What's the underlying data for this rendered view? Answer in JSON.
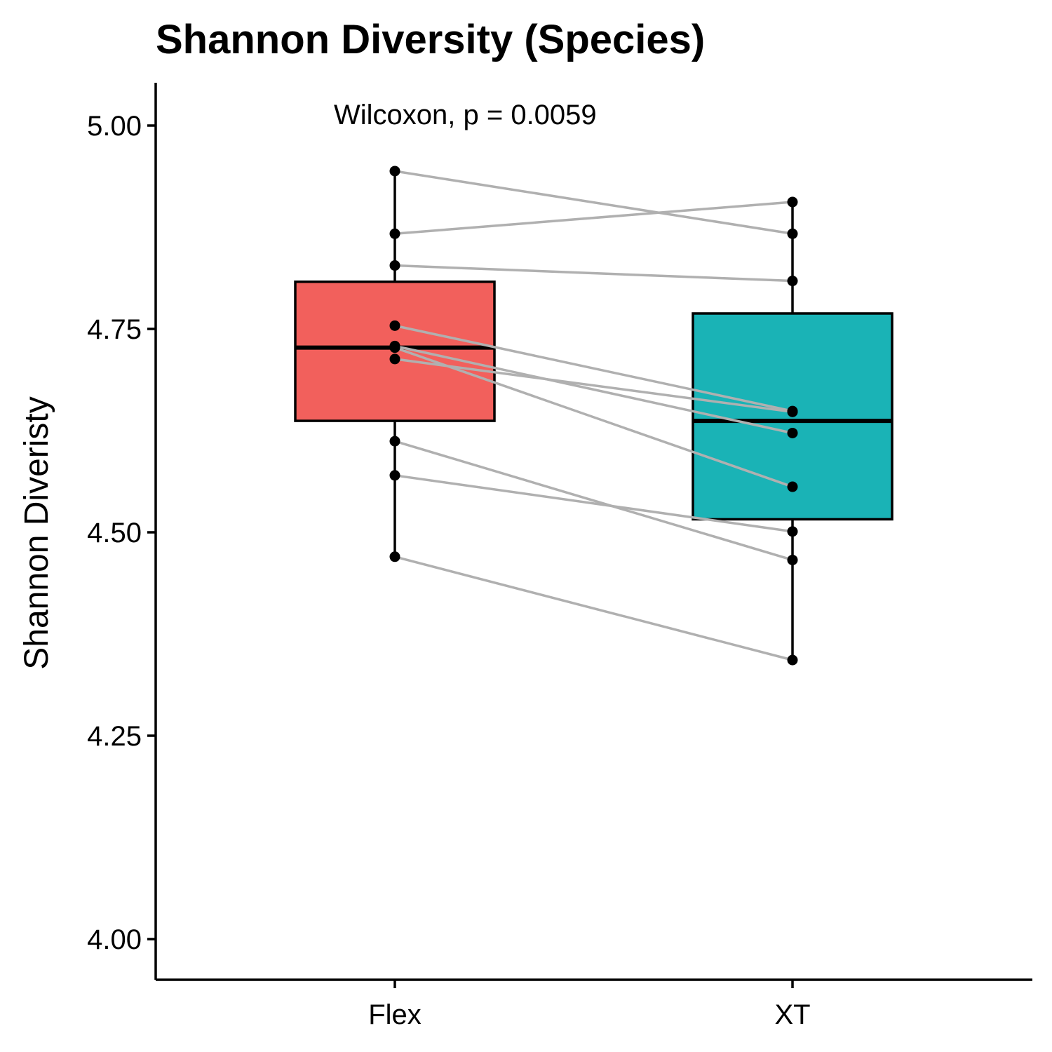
{
  "chart_data": {
    "type": "box",
    "title": "Shannon Diversity (Species)",
    "annotation": "Wilcoxon, p = 0.0059",
    "xlabel": "",
    "ylabel": "Shannon Diveristy",
    "ylim": [
      3.95,
      5.05
    ],
    "yticks": [
      4.0,
      4.25,
      4.5,
      4.75,
      5.0
    ],
    "ytick_labels": [
      "4.00",
      "4.25",
      "4.50",
      "4.75",
      "5.00"
    ],
    "categories": [
      "Flex",
      "XT"
    ],
    "grid": false,
    "legend": "none",
    "colors": {
      "Flex": "#F2605C",
      "XT": "#1AB3B6",
      "pair_line": "#B0B0B0",
      "point": "#000000"
    },
    "boxes": [
      {
        "name": "Flex",
        "whisker_low": 4.47,
        "q1": 4.637,
        "median": 4.727,
        "q3": 4.808,
        "whisker_high": 4.944
      },
      {
        "name": "XT",
        "whisker_low": 4.343,
        "q1": 4.516,
        "median": 4.637,
        "q3": 4.769,
        "whisker_high": 4.906
      }
    ],
    "pairs": [
      {
        "Flex": 4.944,
        "XT": 4.867
      },
      {
        "Flex": 4.867,
        "XT": 4.906
      },
      {
        "Flex": 4.828,
        "XT": 4.809
      },
      {
        "Flex": 4.754,
        "XT": 4.649
      },
      {
        "Flex": 4.729,
        "XT": 4.622
      },
      {
        "Flex": 4.727,
        "XT": 4.556
      },
      {
        "Flex": 4.713,
        "XT": 4.648
      },
      {
        "Flex": 4.612,
        "XT": 4.466
      },
      {
        "Flex": 4.57,
        "XT": 4.501
      },
      {
        "Flex": 4.47,
        "XT": 4.343
      }
    ]
  }
}
